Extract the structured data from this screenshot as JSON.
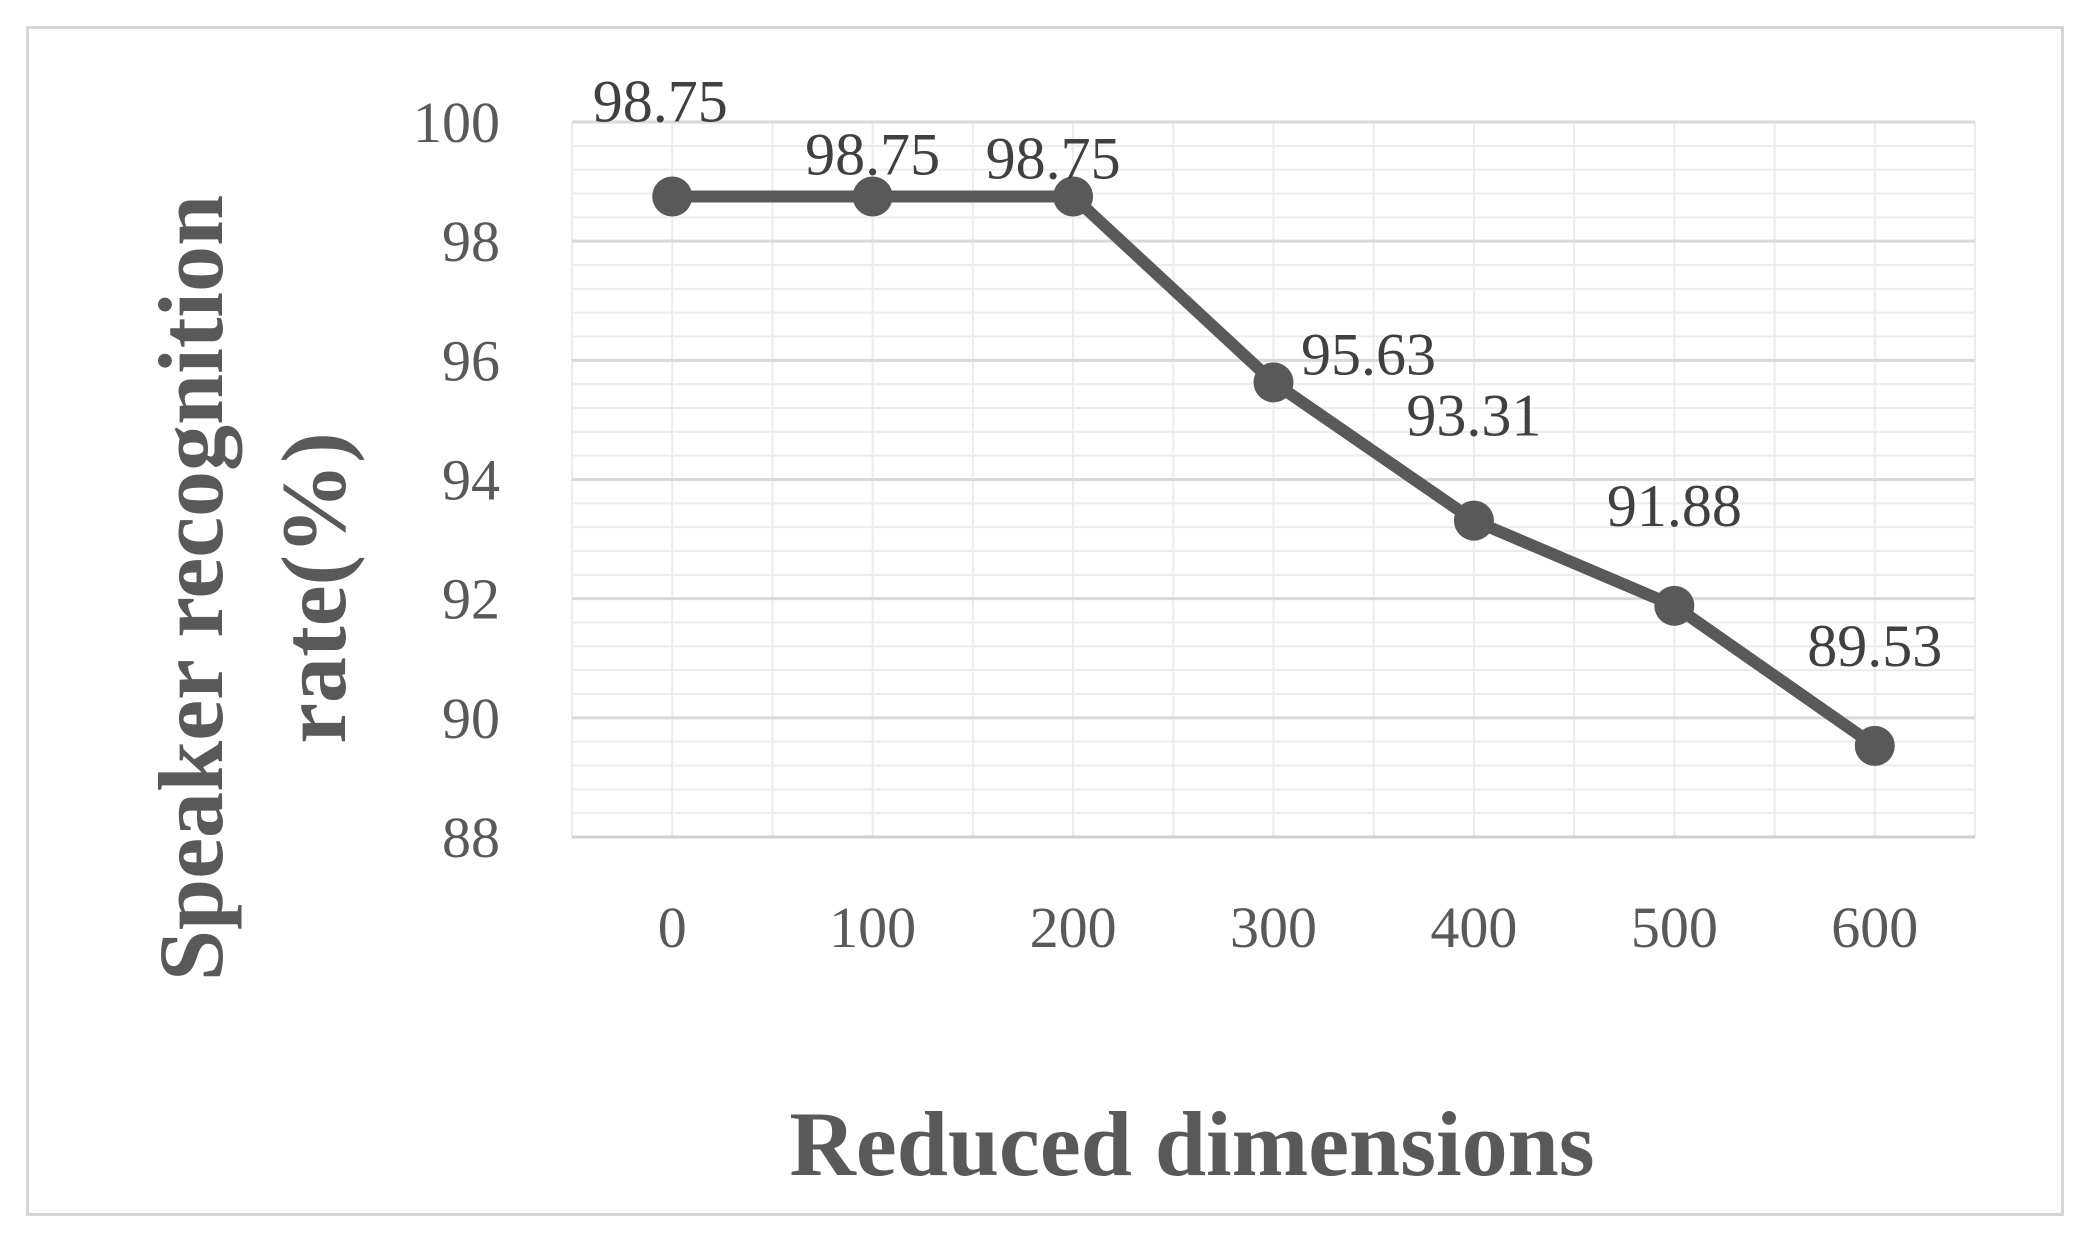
{
  "chart_data": {
    "type": "line",
    "title": "",
    "xlabel": "Reduced dimensions",
    "ylabel_lines": [
      "Speaker recognition",
      "rate(%)"
    ],
    "categories": [
      "0",
      "100",
      "200",
      "300",
      "400",
      "500",
      "600"
    ],
    "series": [
      {
        "values": [
          98.75,
          98.75,
          98.75,
          95.63,
          93.31,
          91.88,
          89.53
        ],
        "data_labels": [
          "98.75",
          "98.75",
          "98.75",
          "95.63",
          "93.31",
          "91.88",
          "89.53"
        ]
      }
    ],
    "ylim": [
      88,
      100
    ],
    "yticks": [
      "100",
      "98",
      "96",
      "94",
      "92",
      "90",
      "88"
    ],
    "ytick_values": [
      100,
      98,
      96,
      94,
      92,
      90,
      88
    ],
    "grid": true,
    "legend": "none",
    "colors": {
      "line": "#595959",
      "marker": "#595959",
      "grid": "#d9d9d9",
      "axis_title": "#595959",
      "tick_label": "#595959",
      "data_label": "#404040"
    }
  }
}
